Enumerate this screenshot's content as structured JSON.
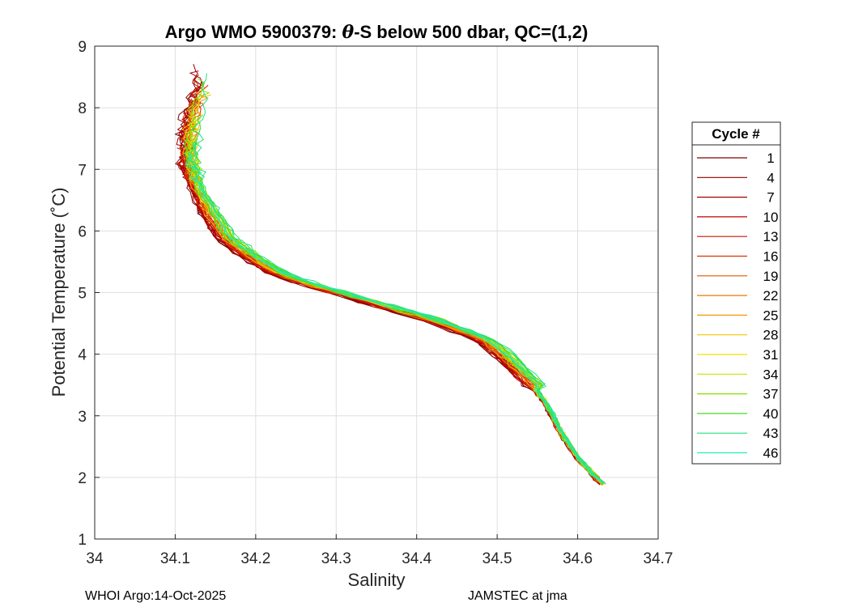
{
  "chart_data": {
    "type": "line",
    "title_prefix": "Argo WMO 5900379: ",
    "title_symbol": "θ",
    "title_suffix": "-S below 500 dbar,  QC=(1,2)",
    "xlabel": "Salinity",
    "ylabel": "Potential Temperature (˚C)",
    "xlim": [
      34.0,
      34.7
    ],
    "ylim": [
      1,
      9
    ],
    "xticks": [
      34,
      34.1,
      34.2,
      34.3,
      34.4,
      34.5,
      34.6,
      34.7
    ],
    "xtick_labels": [
      "34",
      "34.1",
      "34.2",
      "34.3",
      "34.4",
      "34.5",
      "34.6",
      "34.7"
    ],
    "yticks": [
      1,
      2,
      3,
      4,
      5,
      6,
      7,
      8,
      9
    ],
    "ytick_labels": [
      "1",
      "2",
      "3",
      "4",
      "5",
      "6",
      "7",
      "8",
      "9"
    ],
    "grid": true,
    "legend_position": "right",
    "legend_title": "Cycle #",
    "legend_entries": [
      {
        "label": "1",
        "color": "#800000"
      },
      {
        "label": "4",
        "color": "#8f0000"
      },
      {
        "label": "7",
        "color": "#a30000"
      },
      {
        "label": "10",
        "color": "#bb0000"
      },
      {
        "label": "13",
        "color": "#cc1100"
      },
      {
        "label": "16",
        "color": "#dd3300"
      },
      {
        "label": "19",
        "color": "#e65500"
      },
      {
        "label": "22",
        "color": "#ee7700"
      },
      {
        "label": "25",
        "color": "#f29900"
      },
      {
        "label": "28",
        "color": "#f5c400"
      },
      {
        "label": "31",
        "color": "#f0e000"
      },
      {
        "label": "34",
        "color": "#c8e400"
      },
      {
        "label": "37",
        "color": "#88e000"
      },
      {
        "label": "40",
        "color": "#44dd22"
      },
      {
        "label": "43",
        "color": "#22e080"
      },
      {
        "label": "46",
        "color": "#22eebb"
      }
    ],
    "centerline": [
      [
        34.63,
        1.9
      ],
      [
        34.6,
        2.3
      ],
      [
        34.58,
        2.7
      ],
      [
        34.56,
        3.2
      ],
      [
        34.54,
        3.55
      ],
      [
        34.52,
        3.8
      ],
      [
        34.5,
        4.05
      ],
      [
        34.48,
        4.25
      ],
      [
        34.45,
        4.4
      ],
      [
        34.42,
        4.55
      ],
      [
        34.38,
        4.7
      ],
      [
        34.34,
        4.85
      ],
      [
        34.3,
        5.0
      ],
      [
        34.26,
        5.15
      ],
      [
        34.22,
        5.35
      ],
      [
        34.19,
        5.6
      ],
      [
        34.16,
        5.9
      ],
      [
        34.14,
        6.3
      ],
      [
        34.125,
        6.7
      ],
      [
        34.115,
        7.1
      ],
      [
        34.115,
        7.5
      ],
      [
        34.12,
        7.9
      ],
      [
        34.13,
        8.2
      ]
    ],
    "series_count": 46,
    "salinity_spread_range": [
      -0.015,
      0.02
    ]
  },
  "footer": {
    "left": "WHOI Argo:14-Oct-2025",
    "right": "JAMSTEC at jma"
  }
}
